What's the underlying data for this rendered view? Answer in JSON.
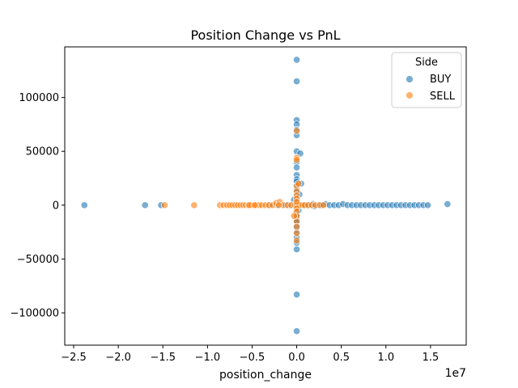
{
  "chart_data": {
    "type": "scatter",
    "title": "Position Change vs PnL",
    "xlabel": "position_change",
    "ylabel": "",
    "x_offset_label": "1e7",
    "x_scale_factor": 10000000,
    "xlim": [
      -26000000,
      19000000
    ],
    "ylim": [
      -130000,
      147000
    ],
    "x_ticks": [
      -25000000,
      -20000000,
      -15000000,
      -10000000,
      -5000000,
      0,
      5000000,
      10000000,
      15000000
    ],
    "x_tick_labels": [
      "−2.5",
      "−2.0",
      "−1.5",
      "−1.0",
      "−0.5",
      "0.0",
      "0.5",
      "1.0",
      "1.5"
    ],
    "y_ticks": [
      -100000,
      -50000,
      0,
      50000,
      100000
    ],
    "y_tick_labels": [
      "−100000",
      "−50000",
      "0",
      "50000",
      "100000"
    ],
    "grid": false,
    "legend": {
      "title": "Side",
      "placement": "top-right",
      "entries": [
        {
          "label": "BUY",
          "color": "#1f77b4"
        },
        {
          "label": "SELL",
          "color": "#ff7f0e"
        }
      ]
    },
    "series": [
      {
        "name": "BUY",
        "color": "#1f77b4",
        "points": [
          [
            -23800000,
            0
          ],
          [
            -17000000,
            0
          ],
          [
            -15200000,
            0
          ],
          [
            16900000,
            1000
          ],
          [
            0,
            135000
          ],
          [
            0,
            115000
          ],
          [
            0,
            79000
          ],
          [
            0,
            75000
          ],
          [
            0,
            70000
          ],
          [
            0,
            65000
          ],
          [
            0,
            50000
          ],
          [
            400000,
            48000
          ],
          [
            0,
            40000
          ],
          [
            0,
            35000
          ],
          [
            0,
            28000
          ],
          [
            0,
            24000
          ],
          [
            0,
            22000
          ],
          [
            0,
            18000
          ],
          [
            0,
            15000
          ],
          [
            0,
            12000
          ],
          [
            0,
            10000
          ],
          [
            0,
            8000
          ],
          [
            0,
            6000
          ],
          [
            0,
            4000
          ],
          [
            0,
            2000
          ],
          [
            0,
            -2000
          ],
          [
            0,
            -4000
          ],
          [
            0,
            -6000
          ],
          [
            0,
            -8000
          ],
          [
            0,
            -10000
          ],
          [
            0,
            -13000
          ],
          [
            0,
            -16000
          ],
          [
            0,
            -20000
          ],
          [
            0,
            -25000
          ],
          [
            0,
            -30000
          ],
          [
            0,
            -35000
          ],
          [
            0,
            -41000
          ],
          [
            0,
            -83000
          ],
          [
            0,
            -117000
          ],
          [
            500000,
            20000
          ],
          [
            300000,
            10000
          ],
          [
            -300000,
            5000
          ],
          [
            200000,
            -5000
          ],
          [
            -1200000,
            0
          ],
          [
            1800000,
            1000
          ],
          [
            2500000,
            0
          ],
          [
            3200000,
            1000
          ],
          [
            3700000,
            0
          ],
          [
            4200000,
            0
          ],
          [
            4700000,
            0
          ],
          [
            5200000,
            1000
          ],
          [
            5700000,
            0
          ],
          [
            6200000,
            0
          ],
          [
            6700000,
            0
          ],
          [
            7200000,
            0
          ],
          [
            7700000,
            0
          ],
          [
            8200000,
            0
          ],
          [
            8700000,
            0
          ],
          [
            9200000,
            0
          ],
          [
            9700000,
            0
          ],
          [
            10200000,
            0
          ],
          [
            10700000,
            0
          ],
          [
            11200000,
            0
          ],
          [
            11700000,
            0
          ],
          [
            12200000,
            0
          ],
          [
            12700000,
            0
          ],
          [
            13200000,
            0
          ],
          [
            13700000,
            0
          ],
          [
            14200000,
            0
          ],
          [
            14700000,
            0
          ],
          [
            800000,
            0
          ],
          [
            1300000,
            0
          ],
          [
            2000000,
            -1000
          ],
          [
            2800000,
            0
          ],
          [
            -600000,
            0
          ],
          [
            -2200000,
            0
          ],
          [
            -3000000,
            0
          ]
        ]
      },
      {
        "name": "SELL",
        "color": "#ff7f0e",
        "points": [
          [
            -14800000,
            0
          ],
          [
            -11500000,
            0
          ],
          [
            -8600000,
            0
          ],
          [
            -8200000,
            0
          ],
          [
            -7800000,
            0
          ],
          [
            -7500000,
            0
          ],
          [
            -7200000,
            0
          ],
          [
            -6900000,
            0
          ],
          [
            -6600000,
            0
          ],
          [
            -6300000,
            0
          ],
          [
            -6000000,
            0
          ],
          [
            -5700000,
            0
          ],
          [
            -5400000,
            0
          ],
          [
            -5100000,
            0
          ],
          [
            -4800000,
            0
          ],
          [
            -4500000,
            0
          ],
          [
            -4200000,
            0
          ],
          [
            -3900000,
            0
          ],
          [
            -3500000,
            0
          ],
          [
            -3100000,
            0
          ],
          [
            -2700000,
            0
          ],
          [
            -2300000,
            2000
          ],
          [
            -1900000,
            3000
          ],
          [
            -1500000,
            0
          ],
          [
            -1000000,
            0
          ],
          [
            -600000,
            0
          ],
          [
            -200000,
            0
          ],
          [
            0,
            0
          ],
          [
            300000,
            0
          ],
          [
            600000,
            0
          ],
          [
            900000,
            0
          ],
          [
            1300000,
            0
          ],
          [
            1700000,
            0
          ],
          [
            2100000,
            0
          ],
          [
            2600000,
            0
          ],
          [
            3000000,
            0
          ],
          [
            0,
            69000
          ],
          [
            0,
            44000
          ],
          [
            0,
            42000
          ],
          [
            0,
            18000
          ],
          [
            0,
            13000
          ],
          [
            0,
            9000
          ],
          [
            0,
            6000
          ],
          [
            0,
            3000
          ],
          [
            0,
            -3000
          ],
          [
            0,
            -6000
          ],
          [
            0,
            -10000
          ],
          [
            0,
            -15000
          ],
          [
            0,
            -20000
          ],
          [
            0,
            -26000
          ],
          [
            0,
            -33000
          ],
          [
            200000,
            20000
          ],
          [
            -300000,
            -10000
          ],
          [
            -2000000,
            0
          ],
          [
            -5300000,
            0
          ],
          [
            -4700000,
            0
          ]
        ]
      }
    ]
  }
}
